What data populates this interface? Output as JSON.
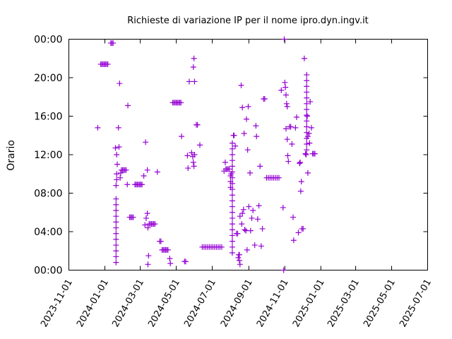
{
  "chart_data": {
    "type": "scatter",
    "title": "Richieste di variazione IP per il nome ipro.dyn.ingv.it",
    "xlabel": "",
    "ylabel": "Orario",
    "xlim": [
      "2023-11-01",
      "2025-07-01"
    ],
    "ylim": [
      0,
      24
    ],
    "x_ticks": [
      "2023-11-01",
      "2024-01-01",
      "2024-03-01",
      "2024-05-01",
      "2024-07-01",
      "2024-09-01",
      "2024-11-01",
      "2025-01-01",
      "2025-03-01",
      "2025-05-01",
      "2025-07-01"
    ],
    "y_ticks": [
      "00:00",
      "04:00",
      "08:00",
      "12:00",
      "16:00",
      "20:00",
      "00:00"
    ],
    "grid": false,
    "legend": "none",
    "marker": "plus",
    "color": "#9400d3",
    "series": [
      {
        "points": [
          [
            "2023-12-20",
            14.8
          ],
          [
            "2023-12-25",
            21.4
          ],
          [
            "2023-12-27",
            21.4
          ],
          [
            "2023-12-29",
            21.4
          ],
          [
            "2023-12-31",
            21.4
          ],
          [
            "2024-01-02",
            21.4
          ],
          [
            "2024-01-04",
            21.4
          ],
          [
            "2024-01-06",
            21.4
          ],
          [
            "2024-01-11",
            23.6
          ],
          [
            "2024-01-13",
            23.6
          ],
          [
            "2024-01-15",
            23.6
          ],
          [
            "2024-01-19",
            12.7
          ],
          [
            "2024-01-21",
            12.0
          ],
          [
            "2024-01-20",
            7.4
          ],
          [
            "2024-01-20",
            6.8
          ],
          [
            "2024-01-20",
            6.2
          ],
          [
            "2024-01-20",
            5.6
          ],
          [
            "2024-01-20",
            5.0
          ],
          [
            "2024-01-20",
            4.4
          ],
          [
            "2024-01-20",
            3.8
          ],
          [
            "2024-01-20",
            3.2
          ],
          [
            "2024-01-20",
            2.6
          ],
          [
            "2024-01-20",
            2.0
          ],
          [
            "2024-01-20",
            1.4
          ],
          [
            "2024-01-20",
            0.8
          ],
          [
            "2024-01-20",
            8.8
          ],
          [
            "2024-01-21",
            9.4
          ],
          [
            "2024-01-21",
            10.0
          ],
          [
            "2024-01-22",
            11.0
          ],
          [
            "2024-01-24",
            14.8
          ],
          [
            "2024-01-25",
            12.8
          ],
          [
            "2024-01-26",
            19.4
          ],
          [
            "2024-01-27",
            9.6
          ],
          [
            "2024-01-28",
            10.1
          ],
          [
            "2024-01-29",
            10.4
          ],
          [
            "2024-01-31",
            10.4
          ],
          [
            "2024-02-02",
            10.4
          ],
          [
            "2024-02-04",
            10.4
          ],
          [
            "2024-02-06",
            10.4
          ],
          [
            "2024-02-08",
            8.9
          ],
          [
            "2024-02-09",
            17.1
          ],
          [
            "2024-02-12",
            5.5
          ],
          [
            "2024-02-14",
            5.5
          ],
          [
            "2024-02-16",
            5.5
          ],
          [
            "2024-02-18",
            5.5
          ],
          [
            "2024-02-21",
            8.9
          ],
          [
            "2024-02-23",
            8.9
          ],
          [
            "2024-02-25",
            8.9
          ],
          [
            "2024-02-27",
            8.9
          ],
          [
            "2024-02-29",
            8.9
          ],
          [
            "2024-03-02",
            8.9
          ],
          [
            "2024-03-04",
            8.9
          ],
          [
            "2024-03-07",
            9.8
          ],
          [
            "2024-03-09",
            4.7
          ],
          [
            "2024-03-10",
            13.3
          ],
          [
            "2024-03-11",
            5.4
          ],
          [
            "2024-03-13",
            5.9
          ],
          [
            "2024-03-13",
            10.4
          ],
          [
            "2024-03-14",
            4.4
          ],
          [
            "2024-03-14",
            0.6
          ],
          [
            "2024-03-15",
            1.5
          ],
          [
            "2024-03-16",
            4.8
          ],
          [
            "2024-03-18",
            4.8
          ],
          [
            "2024-03-20",
            4.8
          ],
          [
            "2024-03-22",
            4.8
          ],
          [
            "2024-03-24",
            4.8
          ],
          [
            "2024-03-26",
            4.8
          ],
          [
            "2024-03-30",
            10.2
          ],
          [
            "2024-04-03",
            3.0
          ],
          [
            "2024-04-05",
            3.0
          ],
          [
            "2024-04-07",
            2.1
          ],
          [
            "2024-04-09",
            2.1
          ],
          [
            "2024-04-11",
            2.1
          ],
          [
            "2024-04-13",
            2.1
          ],
          [
            "2024-04-15",
            2.1
          ],
          [
            "2024-04-17",
            2.1
          ],
          [
            "2024-04-20",
            1.2
          ],
          [
            "2024-04-21",
            0.7
          ],
          [
            "2024-04-25",
            17.4
          ],
          [
            "2024-04-27",
            17.4
          ],
          [
            "2024-04-29",
            17.4
          ],
          [
            "2024-05-01",
            17.4
          ],
          [
            "2024-05-03",
            17.4
          ],
          [
            "2024-05-05",
            17.4
          ],
          [
            "2024-05-07",
            17.4
          ],
          [
            "2024-05-09",
            17.4
          ],
          [
            "2024-05-10",
            13.9
          ],
          [
            "2024-05-15",
            0.9
          ],
          [
            "2024-05-17",
            0.9
          ],
          [
            "2024-05-20",
            11.9
          ],
          [
            "2024-05-21",
            10.6
          ],
          [
            "2024-05-23",
            19.6
          ],
          [
            "2024-05-27",
            12.2
          ],
          [
            "2024-05-29",
            11.8
          ],
          [
            "2024-05-30",
            11.2
          ],
          [
            "2024-05-31",
            10.8
          ],
          [
            "2024-06-01",
            12.0
          ],
          [
            "2024-05-30",
            21.1
          ],
          [
            "2024-05-31",
            22.0
          ],
          [
            "2024-06-01",
            19.6
          ],
          [
            "2024-06-04",
            15.1
          ],
          [
            "2024-06-06",
            15.1
          ],
          [
            "2024-06-10",
            13.0
          ],
          [
            "2024-06-14",
            2.4
          ],
          [
            "2024-06-17",
            2.4
          ],
          [
            "2024-06-20",
            2.4
          ],
          [
            "2024-06-23",
            2.4
          ],
          [
            "2024-06-26",
            2.4
          ],
          [
            "2024-06-29",
            2.4
          ],
          [
            "2024-07-02",
            2.4
          ],
          [
            "2024-07-05",
            2.4
          ],
          [
            "2024-07-08",
            2.4
          ],
          [
            "2024-07-11",
            2.4
          ],
          [
            "2024-07-14",
            2.4
          ],
          [
            "2024-07-17",
            2.4
          ],
          [
            "2024-07-21",
            10.3
          ],
          [
            "2024-07-23",
            11.2
          ],
          [
            "2024-07-24",
            10.5
          ],
          [
            "2024-07-26",
            10.5
          ],
          [
            "2024-07-28",
            10.5
          ],
          [
            "2024-07-30",
            10.5
          ],
          [
            "2024-08-01",
            9.8
          ],
          [
            "2024-08-01",
            9.2
          ],
          [
            "2024-08-01",
            8.6
          ],
          [
            "2024-08-02",
            10.0
          ],
          [
            "2024-08-04",
            13.2
          ],
          [
            "2024-08-04",
            12.6
          ],
          [
            "2024-08-04",
            12.0
          ],
          [
            "2024-08-04",
            11.4
          ],
          [
            "2024-08-04",
            10.8
          ],
          [
            "2024-08-04",
            10.2
          ],
          [
            "2024-08-04",
            9.6
          ],
          [
            "2024-08-04",
            9.0
          ],
          [
            "2024-08-04",
            8.4
          ],
          [
            "2024-08-04",
            7.8
          ],
          [
            "2024-08-04",
            7.2
          ],
          [
            "2024-08-04",
            6.6
          ],
          [
            "2024-08-04",
            6.0
          ],
          [
            "2024-08-04",
            5.4
          ],
          [
            "2024-08-04",
            4.8
          ],
          [
            "2024-08-04",
            4.2
          ],
          [
            "2024-08-04",
            3.6
          ],
          [
            "2024-08-04",
            3.0
          ],
          [
            "2024-08-04",
            2.4
          ],
          [
            "2024-08-04",
            1.8
          ],
          [
            "2024-08-06",
            14.0
          ],
          [
            "2024-08-07",
            14.0
          ],
          [
            "2024-08-09",
            12.9
          ],
          [
            "2024-08-11",
            3.8
          ],
          [
            "2024-08-13",
            3.8
          ],
          [
            "2024-08-14",
            1.3
          ],
          [
            "2024-08-15",
            1.6
          ],
          [
            "2024-08-16",
            1.6
          ],
          [
            "2024-08-16",
            1.0
          ],
          [
            "2024-08-17",
            0.6
          ],
          [
            "2024-08-17",
            5.6
          ],
          [
            "2024-08-19",
            19.2
          ],
          [
            "2024-08-20",
            4.8
          ],
          [
            "2024-08-21",
            16.9
          ],
          [
            "2024-08-21",
            5.9
          ],
          [
            "2024-08-23",
            6.3
          ],
          [
            "2024-08-24",
            14.2
          ],
          [
            "2024-08-25",
            4.2
          ],
          [
            "2024-08-27",
            4.1
          ],
          [
            "2024-08-28",
            15.7
          ],
          [
            "2024-08-29",
            2.1
          ],
          [
            "2024-08-30",
            12.5
          ],
          [
            "2024-08-31",
            17.0
          ],
          [
            "2024-09-01",
            6.6
          ],
          [
            "2024-09-03",
            10.1
          ],
          [
            "2024-09-04",
            4.1
          ],
          [
            "2024-09-06",
            5.4
          ],
          [
            "2024-09-08",
            6.2
          ],
          [
            "2024-09-11",
            2.6
          ],
          [
            "2024-09-13",
            15.0
          ],
          [
            "2024-09-14",
            13.9
          ],
          [
            "2024-09-16",
            5.3
          ],
          [
            "2024-09-18",
            6.7
          ],
          [
            "2024-09-20",
            10.8
          ],
          [
            "2024-09-22",
            2.5
          ],
          [
            "2024-09-24",
            4.3
          ],
          [
            "2024-09-26",
            17.8
          ],
          [
            "2024-09-28",
            17.8
          ],
          [
            "2024-10-01",
            9.6
          ],
          [
            "2024-10-04",
            9.6
          ],
          [
            "2024-10-07",
            9.6
          ],
          [
            "2024-10-10",
            9.6
          ],
          [
            "2024-10-13",
            9.6
          ],
          [
            "2024-10-16",
            9.6
          ],
          [
            "2024-10-19",
            9.6
          ],
          [
            "2024-10-22",
            9.6
          ],
          [
            "2024-10-26",
            18.7
          ],
          [
            "2024-10-29",
            6.5
          ],
          [
            "2024-10-30",
            0.0
          ],
          [
            "2024-10-31",
            24.0
          ],
          [
            "2024-11-01",
            19.5
          ],
          [
            "2024-11-02",
            19.0
          ],
          [
            "2024-11-03",
            18.2
          ],
          [
            "2024-11-04",
            17.3
          ],
          [
            "2024-11-05",
            17.0
          ],
          [
            "2024-11-03",
            14.7
          ],
          [
            "2024-11-05",
            13.6
          ],
          [
            "2024-11-06",
            11.9
          ],
          [
            "2024-11-07",
            11.3
          ],
          [
            "2024-11-09",
            14.9
          ],
          [
            "2024-11-11",
            14.9
          ],
          [
            "2024-11-13",
            13.1
          ],
          [
            "2024-11-15",
            5.5
          ],
          [
            "2024-11-16",
            3.1
          ],
          [
            "2024-11-19",
            14.8
          ],
          [
            "2024-11-21",
            15.9
          ],
          [
            "2024-11-24",
            3.9
          ],
          [
            "2024-11-26",
            11.1
          ],
          [
            "2024-11-27",
            11.2
          ],
          [
            "2024-11-28",
            8.2
          ],
          [
            "2024-11-29",
            9.2
          ],
          [
            "2024-11-30",
            4.3
          ],
          [
            "2024-12-02",
            4.3
          ],
          [
            "2024-12-04",
            22.0
          ],
          [
            "2024-12-06",
            12.1
          ],
          [
            "2024-12-07",
            12.0
          ],
          [
            "2024-12-08",
            20.3
          ],
          [
            "2024-12-08",
            19.7
          ],
          [
            "2024-12-08",
            19.1
          ],
          [
            "2024-12-08",
            18.5
          ],
          [
            "2024-12-08",
            17.9
          ],
          [
            "2024-12-08",
            17.3
          ],
          [
            "2024-12-08",
            16.7
          ],
          [
            "2024-12-08",
            16.1
          ],
          [
            "2024-12-08",
            15.5
          ],
          [
            "2024-12-08",
            14.9
          ],
          [
            "2024-12-08",
            14.3
          ],
          [
            "2024-12-08",
            13.7
          ],
          [
            "2024-12-08",
            13.1
          ],
          [
            "2024-12-08",
            12.5
          ],
          [
            "2024-12-09",
            16.0
          ],
          [
            "2024-12-10",
            13.9
          ],
          [
            "2024-12-10",
            10.1
          ],
          [
            "2024-12-12",
            14.2
          ],
          [
            "2024-12-13",
            13.2
          ],
          [
            "2024-12-14",
            17.5
          ],
          [
            "2024-12-16",
            14.8
          ],
          [
            "2024-12-18",
            12.1
          ],
          [
            "2024-12-20",
            12.1
          ],
          [
            "2024-12-22",
            12.1
          ]
        ]
      }
    ]
  }
}
